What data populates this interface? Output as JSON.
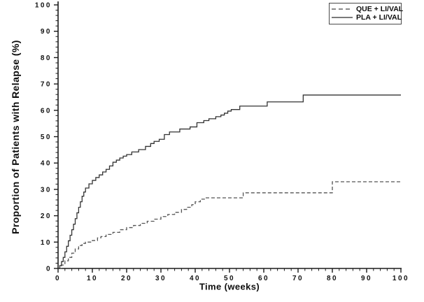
{
  "chart_data": {
    "type": "line",
    "subtype": "kaplan-meier-step",
    "title": "",
    "xlabel": "Time (weeks)",
    "ylabel": "Proportion of Patients with Relapse (%)",
    "xlim": [
      0,
      100
    ],
    "ylim": [
      0,
      100
    ],
    "x_ticks": [
      0,
      10,
      20,
      30,
      40,
      50,
      60,
      70,
      80,
      90,
      100
    ],
    "y_ticks": [
      0,
      10,
      20,
      30,
      40,
      50,
      60,
      70,
      80,
      90,
      100
    ],
    "x_minor_step": 2,
    "y_minor_step": 2,
    "grid": false,
    "legend_position": "top-right",
    "axis_color": "#1a1a1a",
    "series": [
      {
        "name": "QUE + LI/VAL",
        "style": "dashed",
        "color": "#555555",
        "points": [
          [
            0,
            0
          ],
          [
            1,
            1.3
          ],
          [
            2,
            2.9
          ],
          [
            3,
            4.2
          ],
          [
            4,
            5.8
          ],
          [
            5,
            7.4
          ],
          [
            6,
            8.7
          ],
          [
            7,
            9.5
          ],
          [
            8,
            10.0
          ],
          [
            10,
            10.6
          ],
          [
            11.5,
            11.6
          ],
          [
            12.5,
            12.1
          ],
          [
            14,
            12.9
          ],
          [
            16,
            13.7
          ],
          [
            18,
            14.7
          ],
          [
            20,
            15.5
          ],
          [
            22,
            16.3
          ],
          [
            24,
            17.1
          ],
          [
            26,
            17.9
          ],
          [
            28,
            18.7
          ],
          [
            30,
            19.7
          ],
          [
            32,
            20.5
          ],
          [
            34,
            21.3
          ],
          [
            36,
            22.4
          ],
          [
            37.5,
            23.2
          ],
          [
            39,
            24.2
          ],
          [
            40,
            25.3
          ],
          [
            41.5,
            26.3
          ],
          [
            43,
            26.8
          ],
          [
            54,
            28.7
          ],
          [
            80,
            32.9
          ],
          [
            100,
            32.9
          ]
        ]
      },
      {
        "name": "PLA + LI/VAL",
        "style": "solid",
        "color": "#333333",
        "points": [
          [
            0,
            0
          ],
          [
            0.5,
            1.1
          ],
          [
            1,
            2.6
          ],
          [
            1.5,
            4.2
          ],
          [
            2,
            6.3
          ],
          [
            2.5,
            8.4
          ],
          [
            3,
            10.5
          ],
          [
            3.5,
            12.6
          ],
          [
            4,
            14.7
          ],
          [
            4.5,
            16.8
          ],
          [
            5,
            18.9
          ],
          [
            5.5,
            21.1
          ],
          [
            6,
            23.2
          ],
          [
            6.5,
            25.3
          ],
          [
            7,
            27.4
          ],
          [
            7.5,
            29.0
          ],
          [
            8,
            30.5
          ],
          [
            9,
            32.1
          ],
          [
            10,
            33.4
          ],
          [
            11,
            34.5
          ],
          [
            12,
            35.5
          ],
          [
            13,
            36.6
          ],
          [
            14,
            37.6
          ],
          [
            15,
            38.9
          ],
          [
            16,
            40.3
          ],
          [
            17,
            41.1
          ],
          [
            18,
            41.9
          ],
          [
            19,
            42.6
          ],
          [
            20,
            43.2
          ],
          [
            21.5,
            44.2
          ],
          [
            23.5,
            45.1
          ],
          [
            25.5,
            46.3
          ],
          [
            27,
            47.4
          ],
          [
            28,
            48.2
          ],
          [
            29.5,
            49.0
          ],
          [
            31,
            50.8
          ],
          [
            32.5,
            51.8
          ],
          [
            35.5,
            52.9
          ],
          [
            38.5,
            53.7
          ],
          [
            40.5,
            55.3
          ],
          [
            42.5,
            56.1
          ],
          [
            44,
            56.8
          ],
          [
            46,
            57.6
          ],
          [
            47.5,
            58.2
          ],
          [
            48.5,
            58.9
          ],
          [
            49.5,
            59.7
          ],
          [
            50.5,
            60.3
          ],
          [
            53,
            61.6
          ],
          [
            61,
            63.2
          ],
          [
            71.5,
            65.8
          ],
          [
            100,
            65.8
          ]
        ]
      }
    ]
  }
}
